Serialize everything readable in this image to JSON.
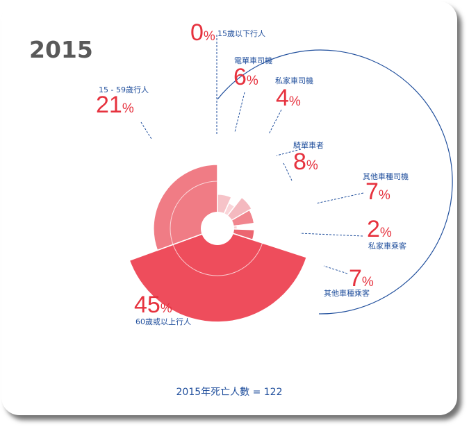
{
  "title": "2015",
  "total_label": "2015年死亡人數 = 122",
  "chart_data": {
    "type": "polar-area",
    "title": "2015",
    "total": 122,
    "unit": "%",
    "colors": {
      "light": "#f6c3c8",
      "medium": "#f1858e",
      "strong": "#ec6570",
      "deep": "#ee4d5c",
      "ring": "#1f4e9c",
      "text": "#e6323e"
    },
    "categories": [
      {
        "label": "15歲以下行人",
        "value": 0,
        "color": "#f6c3c8"
      },
      {
        "label": "電單車司機",
        "value": 6,
        "color": "#f6c3c8"
      },
      {
        "label": "私家車司機",
        "value": 4,
        "color": "#fad5d9"
      },
      {
        "label": "騎單車者",
        "value": 8,
        "color": "#f4b9bf"
      },
      {
        "label": "其他車種司機",
        "value": 7,
        "color": "#f1858e"
      },
      {
        "label": "私家車乘客",
        "value": 2,
        "color": "#f9d0d4"
      },
      {
        "label": "其他車種乘客",
        "value": 7,
        "color": "#ec6570"
      },
      {
        "label": "60歲或以上行人",
        "value": 45,
        "color": "#ee4d5c"
      },
      {
        "label": "15 - 59歲行人",
        "value": 21,
        "color": "#f07c85"
      }
    ]
  }
}
